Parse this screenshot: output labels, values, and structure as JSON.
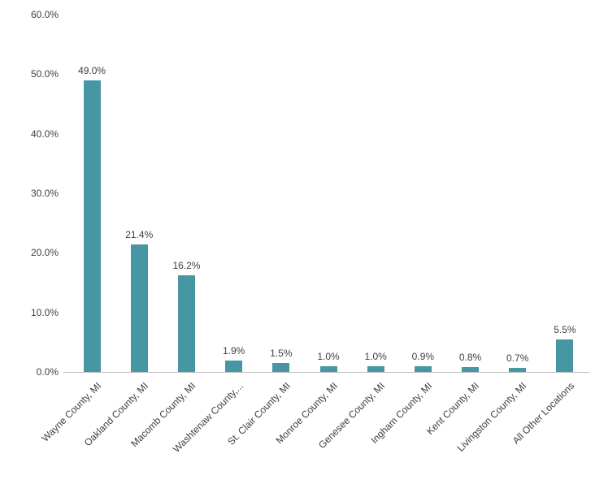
{
  "chart_data": {
    "type": "bar",
    "categories": [
      "Wayne County, MI",
      "Oakland County, MI",
      "Macomb County, MI",
      "Washtenaw County,...",
      "St. Clair County, MI",
      "Monroe County, MI",
      "Genesee County, MI",
      "Ingham County, MI",
      "Kent County, MI",
      "Livingston County, MI",
      "All Other Locations"
    ],
    "values": [
      49.0,
      21.4,
      16.2,
      1.9,
      1.5,
      1.0,
      1.0,
      0.9,
      0.8,
      0.7,
      5.5
    ],
    "data_labels": [
      "49.0%",
      "21.4%",
      "16.2%",
      "1.9%",
      "1.5%",
      "1.0%",
      "1.0%",
      "0.9%",
      "0.8%",
      "0.7%",
      "5.5%"
    ],
    "title": "",
    "xlabel": "",
    "ylabel": "",
    "ylim": [
      0,
      60
    ],
    "y_tick_step": 10,
    "y_tick_labels": [
      "0.0%",
      "10.0%",
      "20.0%",
      "30.0%",
      "40.0%",
      "50.0%",
      "60.0%"
    ],
    "grid": false,
    "legend_position": "none",
    "bar_color": "#4796A4",
    "text_color": "#404040",
    "axis_line_color": "#bfbfbf"
  }
}
